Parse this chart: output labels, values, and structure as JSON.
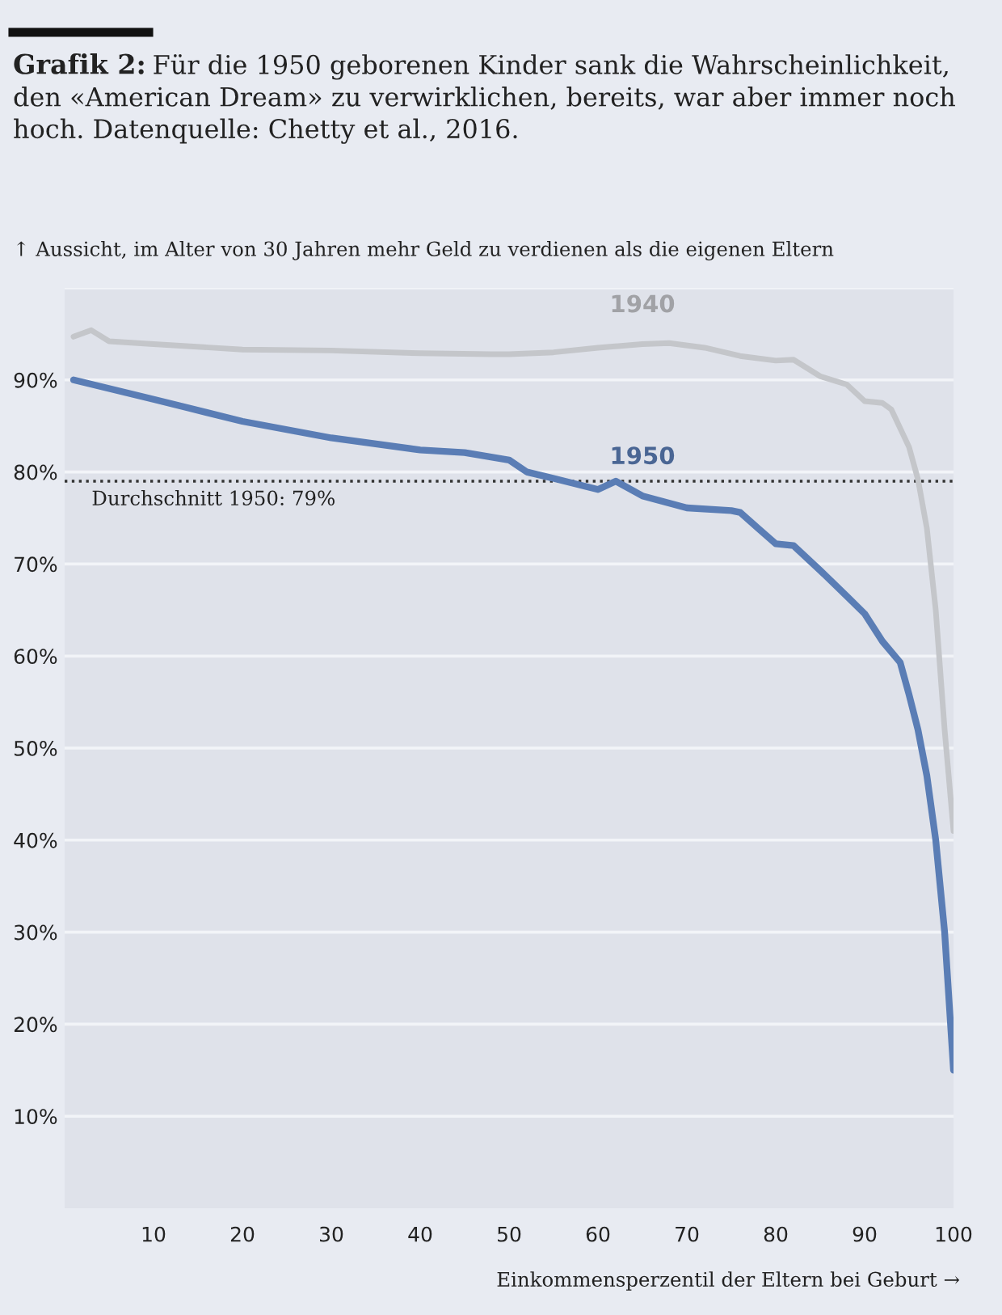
{
  "chart_data": {
    "type": "line",
    "title": "Grafik 2:",
    "subtitle": "Für die 1950 geborenen Kinder sank die Wahrscheinlichkeit, den «American Dream» zu verwirklichen, bereits, war aber immer noch hoch. Datenquelle: Chetty et al., 2016.",
    "ylabel": "↑ Aussicht, im Alter von 30 Jahren mehr Geld zu verdienen als die eigenen Eltern",
    "xlabel": "Einkommensperzentil der Eltern bei Geburt →",
    "series": [
      {
        "name": "1940",
        "color": "#c4c6ca",
        "x": [
          1,
          3,
          5,
          10,
          20,
          30,
          40,
          48,
          50,
          55,
          60,
          65,
          68,
          72,
          76,
          80,
          82,
          85,
          88,
          90,
          92,
          93,
          95,
          96,
          97,
          98,
          99,
          100
        ],
        "values": [
          94.7,
          95.4,
          94.2,
          93.9,
          93.3,
          93.2,
          92.9,
          92.8,
          92.8,
          93.0,
          93.5,
          93.9,
          94.0,
          93.5,
          92.6,
          92.1,
          92.2,
          90.4,
          89.5,
          87.7,
          87.5,
          86.8,
          82.7,
          79.2,
          73.9,
          65.0,
          52.0,
          41.0
        ]
      },
      {
        "name": "1950",
        "color": "#5a7db5",
        "x": [
          1,
          10,
          20,
          30,
          40,
          45,
          50,
          52,
          55,
          60,
          62,
          65,
          70,
          75,
          76,
          78,
          80,
          82,
          85,
          88,
          90,
          92,
          94,
          95,
          96,
          97,
          98,
          99,
          100
        ],
        "values": [
          90.0,
          87.9,
          85.5,
          83.7,
          82.4,
          82.1,
          81.3,
          80.0,
          79.3,
          78.1,
          79.0,
          77.4,
          76.1,
          75.8,
          75.6,
          73.9,
          72.2,
          72.0,
          69.3,
          66.5,
          64.6,
          61.6,
          59.3,
          55.8,
          52.0,
          47.0,
          40.0,
          30.0,
          15.0
        ]
      }
    ],
    "xlim": [
      0,
      100
    ],
    "xticks": [
      10,
      20,
      30,
      40,
      50,
      60,
      70,
      80,
      90,
      100
    ],
    "ylim": [
      0,
      100
    ],
    "yticks": [
      {
        "value": 10,
        "label": "10%"
      },
      {
        "value": 20,
        "label": "20%"
      },
      {
        "value": 30,
        "label": "30%"
      },
      {
        "value": 40,
        "label": "40%"
      },
      {
        "value": 50,
        "label": "50%"
      },
      {
        "value": 60,
        "label": "60%"
      },
      {
        "value": 70,
        "label": "70%"
      },
      {
        "value": 80,
        "label": "80%"
      },
      {
        "value": 90,
        "label": "90%"
      },
      {
        "value": 100,
        "label": null
      }
    ],
    "ref_lines": [
      {
        "axis": "y",
        "value": 79,
        "label": "Durchschnitt 1950: 79%",
        "color": "#333333",
        "line_style": "dotted"
      }
    ],
    "grid": "y",
    "legend": false,
    "marker": "none",
    "line_style": "solid"
  }
}
